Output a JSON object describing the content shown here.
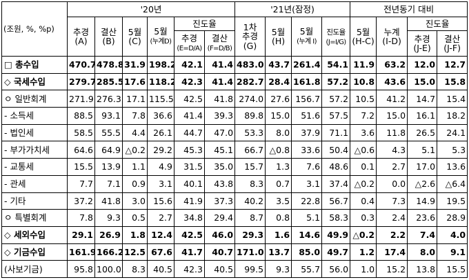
{
  "header": {
    "unit_label": "(조원, %, %p)",
    "groups": [
      "'20년",
      "'21년(잠정)",
      "전년동기  대비"
    ],
    "g20": {
      "supp": "추경",
      "supp_code": "(A)",
      "settle": "결산",
      "settle_code": "(B)",
      "may": "5월",
      "may_code": "(C)",
      "may_cum": "5월",
      "may_cum_code": "(누계D)",
      "progress": "진도율",
      "prog_supp": "추경",
      "prog_supp_code": "(E=D/A)",
      "prog_settle": "결산",
      "prog_settle_code": "(F=D/B)"
    },
    "g21": {
      "first_supp_1": "1차",
      "first_supp_2": "추경",
      "first_supp_code": "(G)",
      "may": "5월",
      "may_code": "(H)",
      "may_cum": "5월",
      "may_cum_code": "(누계 I)",
      "progress": "진도율",
      "progress_code": "(J=I/G)"
    },
    "yoy": {
      "may": "5월",
      "may_code": "(H-C)",
      "cum": "누계",
      "cum_code": "(I-D)",
      "progress": "진도율",
      "supp": "추경",
      "supp_code": "(J-E)",
      "settle": "결산",
      "settle_code": "(J-F)"
    }
  },
  "rows": [
    {
      "label": "□ 총수입",
      "bold": true,
      "values": [
        "470.7",
        "478.8",
        "31.9",
        "198.2",
        "42.1",
        "41.4",
        "483.0",
        "43.7",
        "261.4",
        "54.1",
        "11.9",
        "63.2",
        "12.0",
        "12.7"
      ]
    },
    {
      "label": "◇ 국세수입",
      "bold": true,
      "values": [
        "279.7",
        "285.5",
        "17.6",
        "118.2",
        "42.3",
        "41.4",
        "282.7",
        "28.4",
        "161.8",
        "57.2",
        "10.8",
        "43.6",
        "15.0",
        "15.8"
      ]
    },
    {
      "label": "ㅇ 일반회계",
      "bold": false,
      "values": [
        "271.9",
        "276.3",
        "17.1",
        "115.5",
        "42.5",
        "41.8",
        "274.0",
        "27.6",
        "156.7",
        "57.2",
        "10.5",
        "41.2",
        "14.7",
        "15.4"
      ]
    },
    {
      "label": "- 소득세",
      "bold": false,
      "values": [
        "88.5",
        "93.1",
        "7.8",
        "36.6",
        "41.4",
        "39.3",
        "89.8",
        "15.0",
        "51.6",
        "57.5",
        "7.2",
        "15.0",
        "16.1",
        "18.2"
      ]
    },
    {
      "label": "- 법인세",
      "bold": false,
      "values": [
        "58.5",
        "55.5",
        "4.4",
        "26.1",
        "44.7",
        "47.0",
        "53.3",
        "8.0",
        "37.9",
        "71.1",
        "3.6",
        "11.8",
        "26.5",
        "24.1"
      ]
    },
    {
      "label": "- 부가가치세",
      "bold": false,
      "values": [
        "64.6",
        "64.9",
        "△0.2",
        "29.2",
        "45.3",
        "45.1",
        "66.7",
        "△0.8",
        "33.6",
        "50.4",
        "△0.6",
        "4.3",
        "5.1",
        "5.3"
      ]
    },
    {
      "label": "- 교통세",
      "bold": false,
      "values": [
        "15.5",
        "13.9",
        "1.1",
        "4.9",
        "31.5",
        "35.0",
        "15.7",
        "1.3",
        "7.6",
        "48.6",
        "0.1",
        "2.7",
        "17.0",
        "13.6"
      ]
    },
    {
      "label": "- 관세",
      "bold": false,
      "values": [
        "7.7",
        "7.1",
        "0.9",
        "3.1",
        "40.1",
        "43.8",
        "8.3",
        "0.7",
        "3.1",
        "37.4",
        "△0.2",
        "0.0",
        "△2.6",
        "△6.4"
      ]
    },
    {
      "label": "- 기타",
      "bold": false,
      "values": [
        "37.2",
        "41.8",
        "3.0",
        "15.6",
        "41.9",
        "37.3",
        "40.2",
        "3.5",
        "22.8",
        "56.7",
        "0.4",
        "7.3",
        "14.9",
        "19.5"
      ]
    },
    {
      "label": "ㅇ 특별회계",
      "bold": false,
      "values": [
        "7.8",
        "9.3",
        "0.5",
        "2.7",
        "34.8",
        "29.4",
        "8.7",
        "0.8",
        "5.1",
        "58.3",
        "0.3",
        "2.4",
        "23.6",
        "28.9"
      ]
    },
    {
      "label": "◇ 세외수입",
      "bold": true,
      "values": [
        "29.1",
        "26.9",
        "1.8",
        "12.4",
        "42.5",
        "46.0",
        "29.3",
        "1.6",
        "14.6",
        "49.9",
        "△0.2",
        "2.2",
        "7.4",
        "4.0"
      ]
    },
    {
      "label": "◇ 기금수입",
      "bold": true,
      "values": [
        "161.9",
        "166.2",
        "12.5",
        "67.6",
        "41.7",
        "40.7",
        "171.0",
        "13.7",
        "85.0",
        "49.7",
        "1.2",
        "17.4",
        "8.0",
        "9.1"
      ]
    },
    {
      "label": "(사보기금)",
      "bold": false,
      "values": [
        "95.8",
        "100.0",
        "8.3",
        "40.5",
        "42.3",
        "40.5",
        "99.5",
        "9.3",
        "55.7",
        "56.0",
        "1.0",
        "15.2",
        "13.8",
        "15.5"
      ]
    }
  ]
}
